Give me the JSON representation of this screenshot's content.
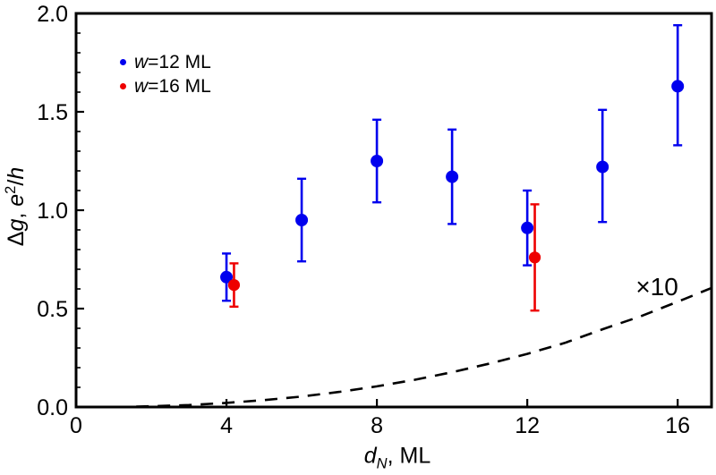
{
  "chart_data": {
    "type": "scatter",
    "title": "",
    "xlabel": "d_N, ML",
    "ylabel": "Δg, e²/h",
    "xlim": [
      0,
      16.9
    ],
    "ylim": [
      0,
      2.0
    ],
    "grid": false,
    "frame": true,
    "legend_position": "top-left",
    "x_ticks": [
      0,
      4,
      8,
      12,
      16
    ],
    "x_tick_labels": [
      "0",
      "4",
      "8",
      "12",
      "16"
    ],
    "y_ticks": [
      0,
      0.5,
      1.0,
      1.5,
      2.0
    ],
    "y_tick_labels": [
      "0.0",
      "0.5",
      "1.0",
      "1.5",
      "2.0"
    ],
    "y_minor_step": 0.1,
    "series": [
      {
        "name": "w=12 ML",
        "color": "#0000EE",
        "marker_radius": 7,
        "x": [
          4,
          6,
          8,
          10,
          12,
          14,
          16
        ],
        "y": [
          0.66,
          0.95,
          1.25,
          1.17,
          0.91,
          1.22,
          1.63
        ],
        "err_plus": [
          0.12,
          0.21,
          0.21,
          0.24,
          0.19,
          0.29,
          0.31
        ],
        "err_minus": [
          0.12,
          0.21,
          0.21,
          0.24,
          0.19,
          0.28,
          0.3
        ]
      },
      {
        "name": "w=16 ML",
        "color": "#EE0000",
        "marker_radius": 6.6,
        "x": [
          4.2,
          12.2
        ],
        "y": [
          0.62,
          0.76
        ],
        "err_plus": [
          0.11,
          0.27
        ],
        "err_minus": [
          0.11,
          0.27
        ]
      }
    ],
    "dashed_curve": {
      "label": "×10",
      "style": "dashed",
      "color": "#000000",
      "x": [
        1.6,
        2,
        3,
        4,
        5,
        6,
        7,
        8,
        9,
        10,
        11,
        12,
        13,
        14,
        15,
        16,
        16.9
      ],
      "y": [
        0.002,
        0.004,
        0.01,
        0.021,
        0.035,
        0.053,
        0.077,
        0.105,
        0.138,
        0.177,
        0.221,
        0.27,
        0.326,
        0.395,
        0.46,
        0.535,
        0.605
      ]
    },
    "annotation": {
      "text": "×10",
      "x": 15.45,
      "y": 0.61
    }
  },
  "labels": {
    "ylabel": [
      {
        "t": "Δ"
      },
      {
        "t": "g",
        "i": 1
      },
      {
        "t": ", "
      },
      {
        "t": "e",
        "i": 1
      },
      {
        "t": "2",
        "sup": 1
      },
      {
        "t": "/"
      },
      {
        "t": "h",
        "i": 1
      }
    ],
    "xlabel": [
      {
        "t": "d",
        "i": 1
      },
      {
        "t": "N",
        "sub": 1,
        "i": 1
      },
      {
        "t": ", ML"
      }
    ],
    "legend": [
      {
        "parts": [
          {
            "t": "w",
            "i": 1
          },
          {
            "t": "=12 ML"
          }
        ]
      },
      {
        "parts": [
          {
            "t": "w",
            "i": 1
          },
          {
            "t": "=16 ML"
          }
        ]
      }
    ]
  }
}
